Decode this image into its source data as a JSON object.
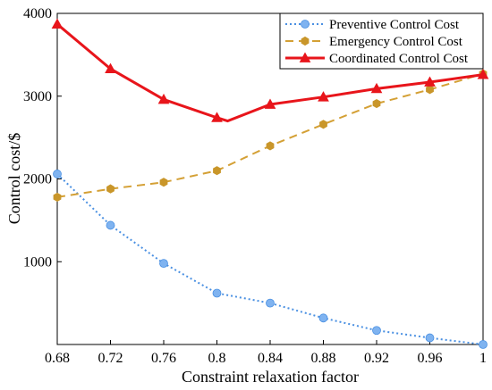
{
  "chart_data": {
    "type": "line",
    "title": "",
    "xlabel": "Constraint relaxation factor",
    "ylabel": "Control cost/$",
    "xlim": [
      0.68,
      1.0
    ],
    "ylim": [
      0,
      4000
    ],
    "x_ticks": [
      "0.68",
      "0.72",
      "0.76",
      "0.8",
      "0.84",
      "0.88",
      "0.92",
      "0.96",
      "1"
    ],
    "y_ticks": [
      "1000",
      "2000",
      "3000",
      "4000"
    ],
    "grid": false,
    "legend_position": "top-right",
    "series": [
      {
        "name": "Preventive Control Cost",
        "color": "#4a90e2",
        "marker_color": "#7fb3f0",
        "line_style": "dotted",
        "marker": "circle",
        "x": [
          0.68,
          0.72,
          0.76,
          0.8,
          0.84,
          0.88,
          0.92,
          0.96,
          1.0
        ],
        "y": [
          2060,
          1440,
          980,
          620,
          500,
          320,
          170,
          80,
          0
        ]
      },
      {
        "name": "Emergency Control Cost",
        "color": "#d4a035",
        "marker_color": "#c9962a",
        "line_style": "dashed",
        "marker": "hexagon",
        "x": [
          0.68,
          0.72,
          0.76,
          0.8,
          0.84,
          0.88,
          0.92,
          0.96,
          1.0
        ],
        "y": [
          1780,
          1880,
          1960,
          2100,
          2400,
          2660,
          2910,
          3080,
          3270
        ]
      },
      {
        "name": "Coordinated Control Cost",
        "color": "#e8151b",
        "marker_color": "#e8151b",
        "line_style": "solid",
        "marker": "triangle",
        "x": [
          0.68,
          0.72,
          0.76,
          0.8,
          0.808,
          0.84,
          0.88,
          0.92,
          0.96,
          1.0
        ],
        "y": [
          3870,
          3330,
          2960,
          2740,
          2700,
          2900,
          2990,
          3090,
          3170,
          3260
        ],
        "marker_x": [
          0.68,
          0.72,
          0.76,
          0.8,
          0.84,
          0.88,
          0.92,
          0.96,
          1.0
        ]
      }
    ]
  }
}
